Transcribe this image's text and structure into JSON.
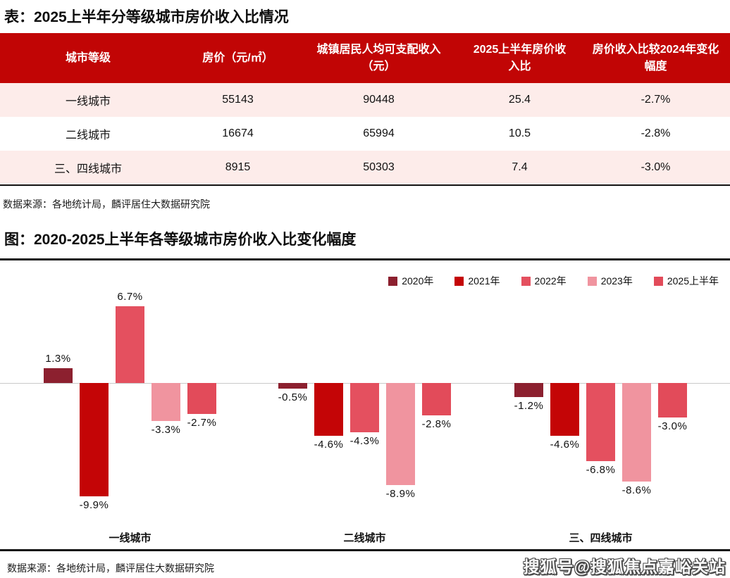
{
  "titles": {
    "table_title": "表：2025上半年分等级城市房价收入比情况",
    "chart_title": "图：2020-2025上半年各等级城市房价收入比变化幅度"
  },
  "sources": {
    "table_source": "数据来源：各地统计局，麟评居住大数据研究院",
    "chart_source": "数据来源：各地统计局，麟评居住大数据研究院"
  },
  "watermark": "搜狐号@搜狐焦点嘉峪关站",
  "colors": {
    "table_header_bg": "#C10505",
    "table_alt_row_bg": "#FDECEA",
    "axis_line": "#C9C9C9",
    "frame_line": "#141414"
  },
  "table": {
    "headers": [
      "城市等级",
      "房价（元/㎡）",
      "城镇居民人均可支配收入（元）",
      "2025上半年房价收入比",
      "房价收入比较2024年变化幅度"
    ],
    "rows": [
      [
        "一线城市",
        "55143",
        "90448",
        "25.4",
        "-2.7%"
      ],
      [
        "二线城市",
        "16674",
        "65994",
        "10.5",
        "-2.8%"
      ],
      [
        "三、四线城市",
        "8915",
        "50303",
        "7.4",
        "-3.0%"
      ]
    ]
  },
  "chart_data": {
    "type": "bar",
    "title": "2020-2025上半年各等级城市房价收入比变化幅度",
    "categories": [
      "一线城市",
      "二线城市",
      "三、四线城市"
    ],
    "series": [
      {
        "name": "2020年",
        "color": "#8C202F",
        "values": [
          1.3,
          -0.5,
          -1.2
        ]
      },
      {
        "name": "2021年",
        "color": "#C40506",
        "values": [
          -9.9,
          -4.6,
          -4.6
        ]
      },
      {
        "name": "2022年",
        "color": "#E4505F",
        "values": [
          6.7,
          -4.3,
          -6.8
        ]
      },
      {
        "name": "2023年",
        "color": "#F0949F",
        "values": [
          -3.3,
          -8.9,
          -8.6
        ]
      },
      {
        "name": "2025上半年",
        "color": "#E24B5A",
        "values": [
          -2.7,
          -2.8,
          -3.0
        ]
      }
    ],
    "unit": "%",
    "value_labels": true,
    "baseline": 0,
    "ylim": [
      -11,
      8
    ],
    "grid": false,
    "legend_position": "top-right"
  }
}
